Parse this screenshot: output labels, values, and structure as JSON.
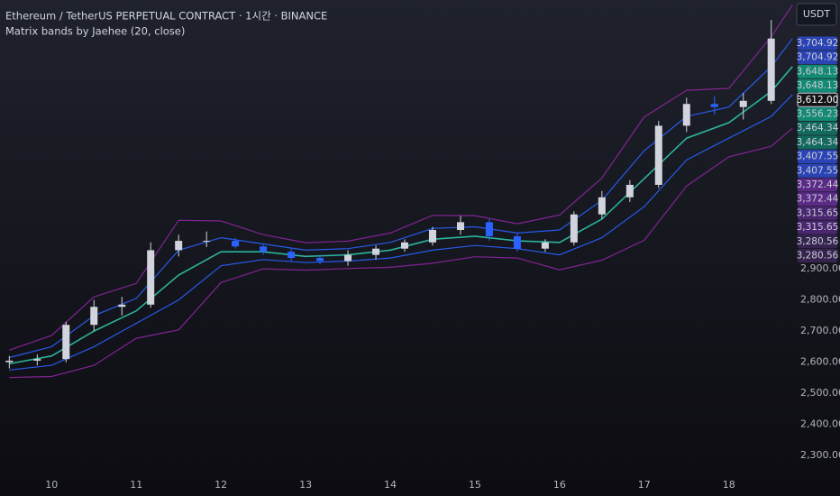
{
  "header": {
    "title": "Ethereum / TetherUS PERPETUAL CONTRACT · 1시간 · BINANCE",
    "indicator": "Matrix bands by Jaehee (20, close)",
    "currency_button": "USDT"
  },
  "chart_data": {
    "type": "candlestick",
    "xlim": [
      9.39,
      18.78
    ],
    "xticks": [
      10,
      11,
      12,
      13,
      14,
      15,
      16,
      17,
      18
    ],
    "ylim": [
      2257,
      3764
    ],
    "yticks": [
      {
        "value": 2300,
        "label": "2,300.00"
      },
      {
        "value": 2400,
        "label": "2,400.00"
      },
      {
        "value": 2500,
        "label": "2,500.00"
      },
      {
        "value": 2600,
        "label": "2,600.00"
      },
      {
        "value": 2700,
        "label": "2,700.00"
      },
      {
        "value": 2800,
        "label": "2,800.00"
      },
      {
        "value": 2900,
        "label": "2,900.00"
      }
    ],
    "grid": false,
    "up_color": "#d1d4dc",
    "down_color": "#2962ff",
    "candles": {
      "x": [
        9.5,
        9.83,
        10.17,
        10.5,
        10.83,
        11.17,
        11.5,
        11.83,
        12.17,
        12.5,
        12.83,
        13.17,
        13.5,
        13.83,
        14.17,
        14.5,
        14.83,
        15.17,
        15.5,
        15.83,
        16.17,
        16.5,
        16.83,
        17.17,
        17.5,
        17.83,
        18.17,
        18.5
      ],
      "open": [
        2600,
        2605,
        2610,
        2720,
        2778,
        2785,
        2960,
        2990,
        2990,
        2972,
        2955,
        2935,
        2925,
        2945,
        2965,
        2985,
        3025,
        3050,
        3005,
        2965,
        2985,
        3075,
        3130,
        3170,
        3360,
        3430,
        3420,
        3440
      ],
      "high": [
        2620,
        2625,
        2730,
        2800,
        2810,
        2985,
        3010,
        3020,
        3000,
        2980,
        2965,
        2945,
        2960,
        2975,
        2995,
        3035,
        3070,
        3060,
        3015,
        2995,
        3085,
        3150,
        3185,
        3375,
        3450,
        3455,
        3465,
        3700
      ],
      "low": [
        2580,
        2590,
        2600,
        2700,
        2750,
        2775,
        2940,
        2970,
        2965,
        2945,
        2925,
        2915,
        2910,
        2930,
        2955,
        2975,
        3010,
        2990,
        2955,
        2955,
        2975,
        3060,
        3115,
        3160,
        3340,
        3395,
        3380,
        3430
      ],
      "close": [
        2605,
        2610,
        2720,
        2778,
        2785,
        2960,
        2990,
        2990,
        2972,
        2955,
        2935,
        2925,
        2945,
        2965,
        2985,
        3025,
        3050,
        3005,
        2965,
        2985,
        3075,
        3130,
        3170,
        3360,
        3430,
        3420,
        3440,
        3640
      ]
    },
    "band_x": [
      9.5,
      10,
      10.5,
      11,
      11.5,
      12,
      12.5,
      13,
      13.5,
      14,
      14.5,
      15,
      15.5,
      16,
      16.5,
      17,
      17.5,
      18,
      18.5,
      18.75
    ],
    "series": [
      {
        "color": "#9c27b0",
        "values": [
          2639,
          2686,
          2810,
          2853,
          3056,
          3054,
          3010,
          2984,
          2989,
          3015,
          3072,
          3071,
          3045,
          3073,
          3192,
          3388,
          3474,
          3480,
          3646,
          3748
        ]
      },
      {
        "color": "#9c27b0",
        "values": [
          2551,
          2554,
          2590,
          2677,
          2704,
          2856,
          2900,
          2896,
          2901,
          2905,
          2918,
          2939,
          2935,
          2897,
          2928,
          2992,
          3166,
          3260,
          3294,
          3352
        ]
      },
      {
        "color": "#2962ff",
        "values": [
          2615,
          2650,
          2750,
          2805,
          2960,
          3000,
          2980,
          2960,
          2965,
          2985,
          3030,
          3035,
          3015,
          3025,
          3120,
          3280,
          3390,
          3420,
          3550,
          3640
        ]
      },
      {
        "color": "#2962ff",
        "values": [
          2575,
          2590,
          2650,
          2725,
          2800,
          2910,
          2930,
          2920,
          2925,
          2935,
          2960,
          2975,
          2965,
          2945,
          3000,
          3100,
          3250,
          3320,
          3390,
          3460
        ]
      },
      {
        "color": "#2ec4a9",
        "values": [
          2595,
          2620,
          2700,
          2765,
          2880,
          2955,
          2955,
          2940,
          2945,
          2960,
          2995,
          3005,
          2990,
          2985,
          3060,
          3190,
          3320,
          3370,
          3470,
          3550
        ]
      }
    ],
    "price_tags": [
      {
        "label": "3,704.92",
        "color": "#2b44b5"
      },
      {
        "label": "3,704.92",
        "color": "#2b44b5"
      },
      {
        "label": "3,648.13",
        "color": "#138a74"
      },
      {
        "label": "3,648.13",
        "color": "#138a74"
      },
      {
        "label": "3,612.00",
        "color": "#131318"
      },
      {
        "label": "3,556.23",
        "color": "#138a74"
      },
      {
        "label": "3,464.34",
        "color": "#13695e"
      },
      {
        "label": "3,464.34",
        "color": "#13695e"
      },
      {
        "label": "3,407.55",
        "color": "#2b44b5"
      },
      {
        "label": "3,407.55",
        "color": "#2b44b5"
      },
      {
        "label": "3,372.44",
        "color": "#5b2b87"
      },
      {
        "label": "3,372.44",
        "color": "#5b2b87"
      },
      {
        "label": "3,315.65",
        "color": "#4a2670"
      },
      {
        "label": "3,315.65",
        "color": "#4a2670"
      },
      {
        "label": "3,280.56",
        "color": "#36244f"
      },
      {
        "label": "3,280.56",
        "color": "#36244f"
      }
    ]
  }
}
